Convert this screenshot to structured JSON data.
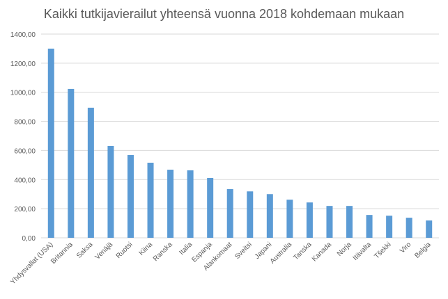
{
  "chart_data": {
    "type": "bar",
    "title": "Kaikki tutkijavierailut yhteensä vuonna 2018 kohdemaan mukaan",
    "categories": [
      "Yhdysvallat (USA)",
      "Britannia",
      "Saksa",
      "Venäjä",
      "Ruotsi",
      "Kiina",
      "Ranska",
      "Italia",
      "Espanja",
      "Alankomaat",
      "Sveitsi",
      "Japani",
      "Australia",
      "Tanska",
      "Kanada",
      "Norja",
      "Itävalta",
      "Tšekki",
      "Viro",
      "Belgia"
    ],
    "values": [
      1300,
      1023,
      894,
      631,
      569,
      516,
      468,
      464,
      411,
      335,
      319,
      300,
      262,
      243,
      219,
      219,
      157,
      152,
      138,
      119
    ],
    "ylim": [
      0,
      1400
    ],
    "yticks": [
      "0,00",
      "200,00",
      "400,00",
      "600,00",
      "800,00",
      "1000,00",
      "1200,00",
      "1400,00"
    ],
    "grid": true,
    "bar_color": "#5b9bd5"
  }
}
